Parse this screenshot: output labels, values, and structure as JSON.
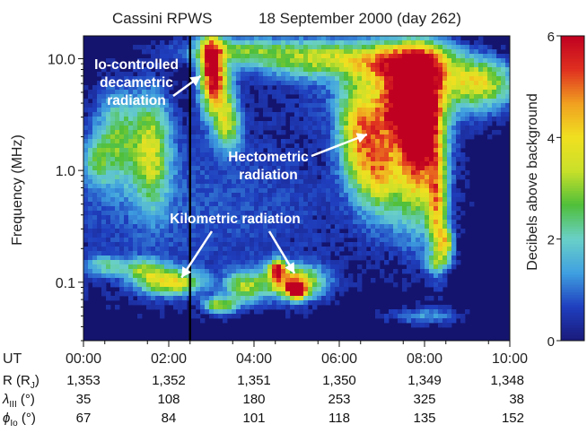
{
  "chart_data": {
    "type": "heatmap",
    "title": "Cassini RPWS",
    "subtitle": "18 September 2000 (day 262)",
    "xlabel": "UT",
    "ylabel": "Frequency (MHz)",
    "colorbar_label": "Decibels above background",
    "x_ticks": [
      "00:00",
      "02:00",
      "04:00",
      "06:00",
      "08:00",
      "10:00"
    ],
    "x_range_hours": [
      0,
      10
    ],
    "y_scale": "log",
    "y_range_mhz": [
      0.03,
      16
    ],
    "y_ticks": [
      {
        "value": 10,
        "label": "10.0"
      },
      {
        "value": 1,
        "label": "1.0"
      },
      {
        "value": 0.1,
        "label": "0.1"
      }
    ],
    "colorbar_range": [
      0,
      6
    ],
    "colorbar_ticks": [
      {
        "value": 0,
        "label": "0"
      },
      {
        "value": 2,
        "label": "2"
      },
      {
        "value": 4,
        "label": "4"
      },
      {
        "value": 6,
        "label": "6"
      }
    ],
    "colormap": [
      "#1a1a7a",
      "#1f3fbf",
      "#3fa0e0",
      "#6ad0c8",
      "#4fbf3a",
      "#c8e02a",
      "#f0e020",
      "#f0a020",
      "#e03020",
      "#c00020"
    ],
    "vertical_marker_hours": 2.5,
    "annotations": [
      {
        "label_lines": [
          "Io-controlled",
          "decametric",
          "radiation"
        ],
        "target_hours": 2.75,
        "target_mhz": 7
      },
      {
        "label_lines": [
          "Hectometric",
          "radiation"
        ],
        "target_hours": 6.65,
        "target_mhz": 2.1
      },
      {
        "label_lines": [
          "Kilometric radiation"
        ],
        "targets": [
          {
            "hours": 2.3,
            "mhz": 0.11
          },
          {
            "hours": 4.95,
            "mhz": 0.12
          }
        ]
      }
    ],
    "orbit_rows": [
      {
        "label": "R (R",
        "label_sub": "J",
        "label_end": ")",
        "values": [
          "1,353",
          "1,352",
          "1,351",
          "1,350",
          "1,349",
          "1,348"
        ]
      },
      {
        "label": "λ",
        "label_sub": "III",
        "label_end": " (°)",
        "values": [
          "35",
          "108",
          "180",
          "253",
          "325",
          "38"
        ]
      },
      {
        "label": "ϕ",
        "label_sub": "Io",
        "label_end": " (°)",
        "values": [
          "67",
          "84",
          "101",
          "118",
          "135",
          "152"
        ]
      }
    ],
    "blobs": [
      {
        "x": 7.4,
        "y": 4.5,
        "sx": 1.4,
        "sy": 0.22,
        "a": 1.2
      },
      {
        "x": 5.7,
        "y": 10,
        "sx": 1.3,
        "sy": 0.12,
        "a": 3.2
      },
      {
        "x": 7.7,
        "y": 9,
        "sx": 0.7,
        "sy": 0.14,
        "a": 4.2
      },
      {
        "x": 7.5,
        "y": 4,
        "sx": 0.45,
        "sy": 0.22,
        "a": 4.2
      },
      {
        "x": 7.75,
        "y": 2.6,
        "sx": 0.18,
        "sy": 0.18,
        "a": 5.3
      },
      {
        "x": 8.0,
        "y": 3,
        "sx": 0.3,
        "sy": 0.35,
        "a": 4.5
      },
      {
        "x": 6.9,
        "y": 1.2,
        "sx": 0.35,
        "sy": 0.3,
        "a": 3.8
      },
      {
        "x": 7.8,
        "y": 1.0,
        "sx": 0.45,
        "sy": 0.4,
        "a": 3.2
      },
      {
        "x": 8.3,
        "y": 0.45,
        "sx": 0.15,
        "sy": 0.35,
        "a": 3.2
      },
      {
        "x": 8.5,
        "y": 0.22,
        "sx": 0.12,
        "sy": 0.1,
        "a": 3.0
      },
      {
        "x": 6.4,
        "y": 2.2,
        "sx": 0.3,
        "sy": 0.3,
        "a": 3.0
      },
      {
        "x": 9.3,
        "y": 6,
        "sx": 0.6,
        "sy": 0.15,
        "a": 3.3
      },
      {
        "x": 3.0,
        "y": 9,
        "sx": 0.18,
        "sy": 0.2,
        "a": 4.8
      },
      {
        "x": 3.15,
        "y": 5,
        "sx": 0.25,
        "sy": 0.2,
        "a": 3.2
      },
      {
        "x": 3.4,
        "y": 2.5,
        "sx": 0.2,
        "sy": 0.15,
        "a": 2.5
      },
      {
        "x": 3.5,
        "y": 12,
        "sx": 0.9,
        "sy": 0.08,
        "a": 2.0
      },
      {
        "x": 1.6,
        "y": 1.5,
        "sx": 0.3,
        "sy": 0.35,
        "a": 3.0
      },
      {
        "x": 0.8,
        "y": 2.0,
        "sx": 0.35,
        "sy": 0.3,
        "a": 2.3
      },
      {
        "x": 0.3,
        "y": 1.2,
        "sx": 0.2,
        "sy": 0.15,
        "a": 1.6
      },
      {
        "x": 2.05,
        "y": 0.1,
        "sx": 0.5,
        "sy": 0.08,
        "a": 3.6
      },
      {
        "x": 1.4,
        "y": 0.13,
        "sx": 0.35,
        "sy": 0.07,
        "a": 2.2
      },
      {
        "x": 0.5,
        "y": 0.14,
        "sx": 0.3,
        "sy": 0.06,
        "a": 1.8
      },
      {
        "x": 3.2,
        "y": 0.062,
        "sx": 0.25,
        "sy": 0.05,
        "a": 3.0
      },
      {
        "x": 4.9,
        "y": 0.1,
        "sx": 0.5,
        "sy": 0.1,
        "a": 4.2
      },
      {
        "x": 5.0,
        "y": 0.085,
        "sx": 0.15,
        "sy": 0.05,
        "a": 5.8
      },
      {
        "x": 4.55,
        "y": 0.13,
        "sx": 0.12,
        "sy": 0.06,
        "a": 5.0
      },
      {
        "x": 3.75,
        "y": 0.09,
        "sx": 0.3,
        "sy": 0.1,
        "a": 2.6
      },
      {
        "x": 8.0,
        "y": 0.05,
        "sx": 0.6,
        "sy": 0.05,
        "a": 1.2
      },
      {
        "x": 2.5,
        "y": 0.5,
        "sx": 3.5,
        "sy": 0.6,
        "a": 0.8
      },
      {
        "x": 8.3,
        "y": 0.15,
        "sx": 0.2,
        "sy": 0.05,
        "a": 1.5
      }
    ]
  }
}
